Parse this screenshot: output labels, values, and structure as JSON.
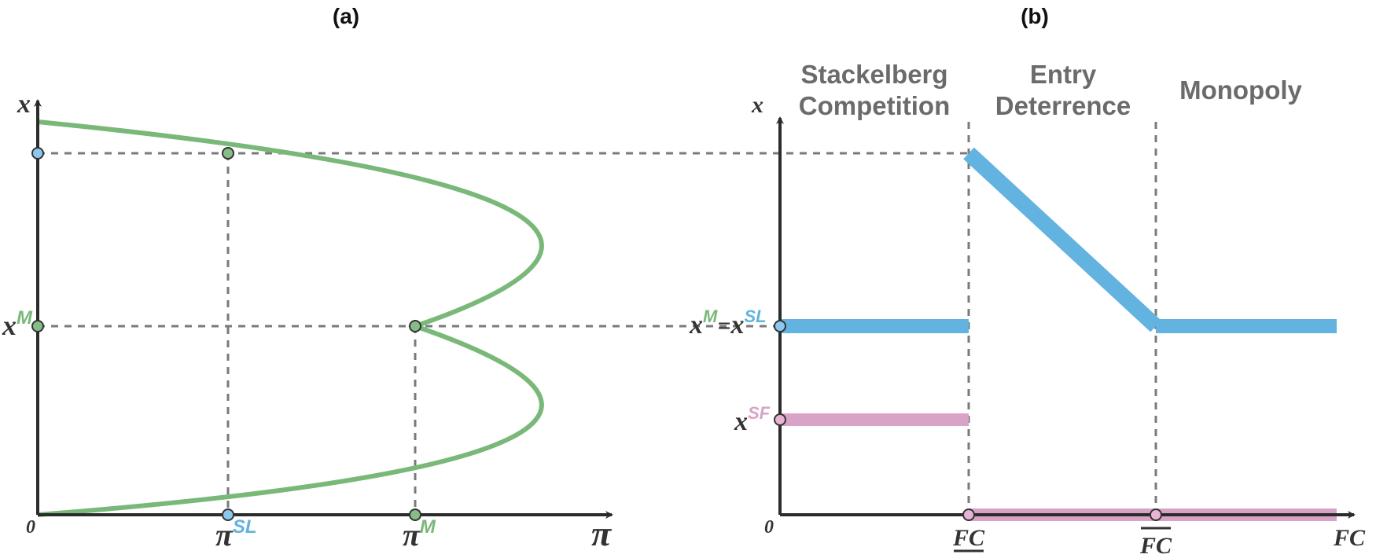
{
  "colors": {
    "green": "#7ab87a",
    "green_marker": "#86bd86",
    "blue": "#62b3e0",
    "blue_marker": "#8cc8ee",
    "pink": "#d9a3c7",
    "pink_marker": "#e8b4d3",
    "guide": "#7a7a7a",
    "axis": "#2b2b2b",
    "text_gray": "#6b6b6b"
  },
  "panel_a": {
    "label": "(a)",
    "y_axis": "x",
    "x_axis": "π",
    "origin": "0",
    "y_tick": {
      "base": "x",
      "sup": "M"
    },
    "x_ticks": [
      {
        "base": "π",
        "sup": "SL"
      },
      {
        "base": "π",
        "sup": "M"
      }
    ]
  },
  "panel_b": {
    "label": "(b)",
    "y_axis": "x",
    "x_axis": "FC",
    "origin": "0",
    "regions": {
      "stackelberg_line1": "Stackelberg",
      "stackelberg_line2": "Competition",
      "entry_line1": "Entry",
      "entry_line2": "Deterrence",
      "monopoly": "Monopoly"
    },
    "y_ticks": {
      "xm_base": "x",
      "xm_sup": "M",
      "equals": "=",
      "xsl_base": "x",
      "xsl_sup": "SL",
      "xsf_base": "x",
      "xsf_sup": "SF"
    },
    "x_ticks": {
      "fc_low": "FC",
      "fc_high": "FC"
    }
  },
  "chart_data": [
    {
      "type": "line",
      "panel": "a",
      "x_var": "π",
      "y_var": "x",
      "curve": "profit–quantity parabola, π maximized at x^M",
      "series": [
        {
          "color": "#7ab87a",
          "points": [
            [
              0,
              0
            ],
            [
              0.5,
              0.55
            ],
            [
              1.0,
              1.0
            ],
            [
              0.5,
              1.45
            ],
            [
              0,
              2.03
            ]
          ]
        }
      ],
      "marked_points": [
        {
          "label": "π^SL",
          "x": 0.5,
          "y": 1.84
        },
        {
          "label": "π^M",
          "x": 1.0,
          "y": 1.0
        }
      ],
      "xlim": [
        0,
        1.45
      ],
      "ylim": [
        0,
        2.3
      ]
    },
    {
      "type": "line",
      "panel": "b",
      "x_var": "FC",
      "y_var": "x",
      "breakpoints": [
        "FC (lower bar)",
        "FC (upper bar)"
      ],
      "series": [
        {
          "color": "#62b3e0",
          "note": "incumbent quantity",
          "segments": [
            [
              [
                0,
                1.0
              ],
              [
                1,
                1.0
              ]
            ],
            [
              [
                1,
                1.84
              ],
              [
                2,
                1.0
              ]
            ],
            [
              [
                2,
                1.0
              ],
              [
                3,
                1.0
              ]
            ]
          ]
        },
        {
          "color": "#d9a3c7",
          "note": "follower quantity",
          "segments": [
            [
              [
                0,
                0.5
              ],
              [
                1,
                0.5
              ]
            ],
            [
              [
                1,
                0
              ],
              [
                3,
                0
              ]
            ]
          ]
        }
      ]
    }
  ]
}
